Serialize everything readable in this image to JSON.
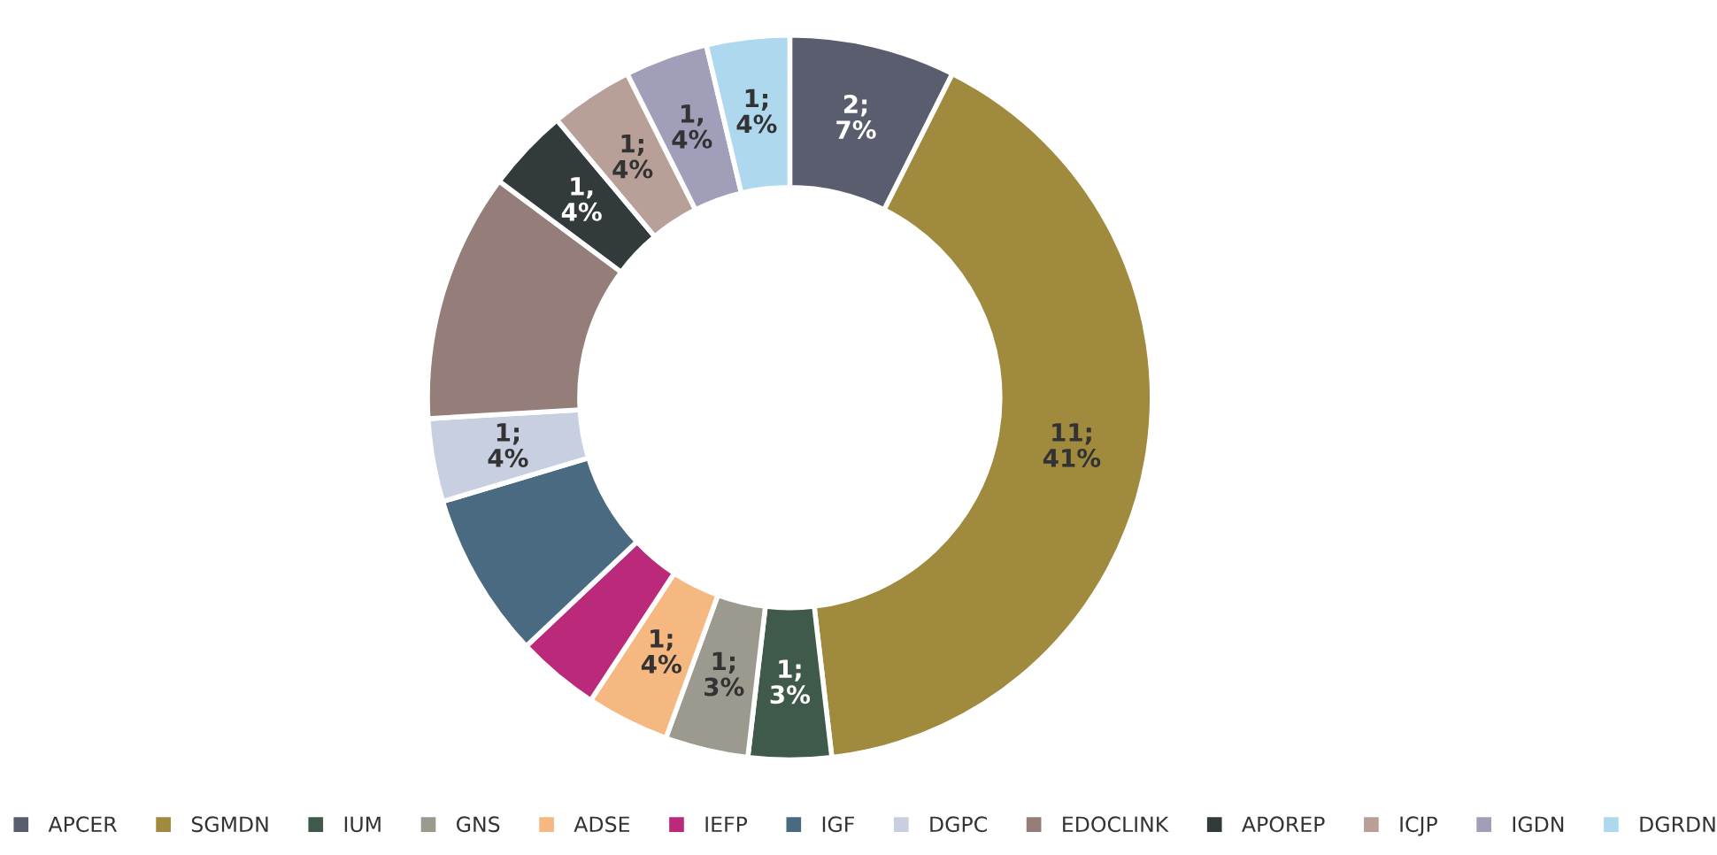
{
  "chart_data": {
    "type": "donut",
    "categories": [
      "APCER",
      "SGMDN",
      "IUM",
      "GNS",
      "ADSE",
      "IEFP",
      "IGF",
      "DGPC",
      "EDOCLINK",
      "APOREP",
      "ICJP",
      "IGDN",
      "DGRDN"
    ],
    "values": [
      2,
      11,
      1,
      1,
      1,
      1,
      2,
      1,
      3,
      1,
      1,
      1,
      1
    ],
    "colors": [
      "#5a5d6e",
      "#a08a3e",
      "#3f5a4a",
      "#9c9a8e",
      "#f5b880",
      "#bb2a7a",
      "#4a6a82",
      "#c8cfe0",
      "#957d7a",
      "#333a3c",
      "#b8a098",
      "#a09eb8",
      "#aed8ee"
    ],
    "value_labels": [
      "2;\n7%",
      "11;\n41%",
      "1;\n3%",
      "1;\n3%",
      "1;\n4%",
      null,
      null,
      "1;\n4%",
      null,
      "1,\n4%",
      "1;\n4%",
      "1,\n4%",
      "1;\n4%"
    ],
    "legend": "bottom"
  }
}
